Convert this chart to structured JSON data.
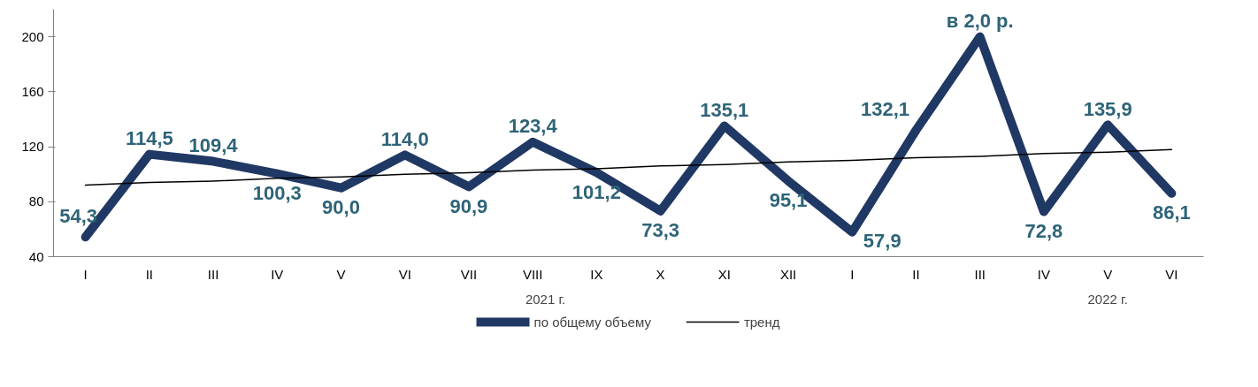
{
  "chart_data": {
    "type": "line",
    "categories": [
      "I",
      "II",
      "III",
      "IV",
      "V",
      "VI",
      "VII",
      "VIII",
      "IX",
      "X",
      "XI",
      "XII",
      "I",
      "II",
      "III",
      "IV",
      "V",
      "VI"
    ],
    "series": [
      {
        "name": "по общему объему",
        "color": "#203864",
        "values": [
          54.3,
          114.5,
          109.4,
          100.3,
          90.0,
          114.0,
          90.9,
          123.4,
          101.2,
          73.3,
          135.1,
          95.1,
          57.9,
          132.1,
          200,
          72.8,
          135.9,
          86.1
        ],
        "value_labels": [
          "54,3",
          "114,5",
          "109,4",
          "100,3",
          "90,0",
          "114,0",
          "90,9",
          "123,4",
          "101,2",
          "73,3",
          "135,1",
          "95,1",
          "57,9",
          "132,1",
          "в 2,0 р.",
          "72,8",
          "135,9",
          "86,1"
        ]
      },
      {
        "name": "тренд",
        "type": "line",
        "color": "#000000",
        "values": [
          92,
          94,
          95,
          97,
          98,
          100,
          101,
          103,
          104,
          106,
          107,
          109,
          110,
          112,
          113,
          115,
          116,
          118
        ]
      }
    ],
    "ylim": [
      40,
      220
    ],
    "yticks": [
      40,
      80,
      120,
      160,
      200
    ],
    "grid": false,
    "legend": "bottom",
    "marker": "none",
    "line_style": "solid",
    "annotations": [
      "2021 г.",
      "2022 г."
    ]
  }
}
